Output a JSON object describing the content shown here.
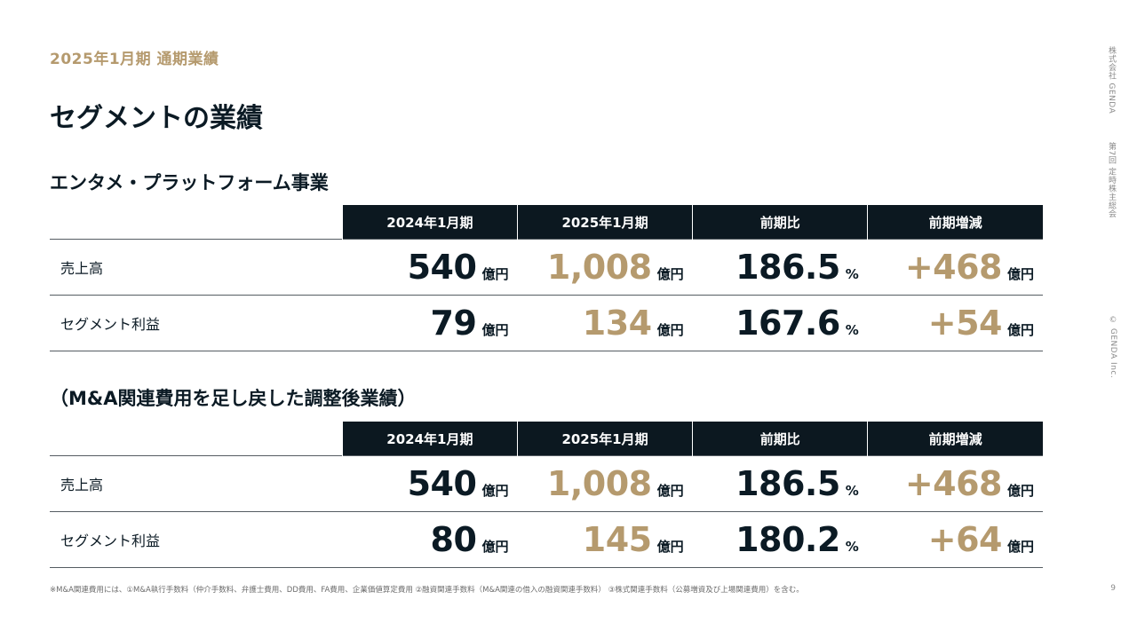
{
  "header": {
    "eyebrow": "2025年1月期 通期業績",
    "title": "セグメントの業績"
  },
  "side": {
    "company": "株式会社 GENDA",
    "meeting": "第7回 定時株主総会",
    "copyright": "© GENDA Inc."
  },
  "columns": [
    "2024年1月期",
    "2025年1月期",
    "前期比",
    "前期増減"
  ],
  "sections": [
    {
      "title": "エンタメ・プラットフォーム事業",
      "rows": [
        {
          "label": "売上高",
          "v2024": "540",
          "v2025": "1,008",
          "ratio": "186.5",
          "diff": "+468"
        },
        {
          "label": "セグメント利益",
          "v2024": "79",
          "v2025": "134",
          "ratio": "167.6",
          "diff": "+54"
        }
      ]
    },
    {
      "title": "（M&A関連費用を足し戻した調整後業績）",
      "rows": [
        {
          "label": "売上高",
          "v2024": "540",
          "v2025": "1,008",
          "ratio": "186.5",
          "diff": "+468"
        },
        {
          "label": "セグメント利益",
          "v2024": "80",
          "v2025": "145",
          "ratio": "180.2",
          "diff": "+64"
        }
      ]
    }
  ],
  "units": {
    "oku": "億円",
    "pct": "%"
  },
  "footnote": "※M&A関連費用には、①M&A執行手数料（仲介手数料、弁護士費用、DD費用、FA費用、企業価値算定費用 ②融資関連手数料（M&A関連の借入の融資関連手数料） ③株式関連手数料（公募増資及び上場関連費用）を含む。",
  "page_number": "9"
}
